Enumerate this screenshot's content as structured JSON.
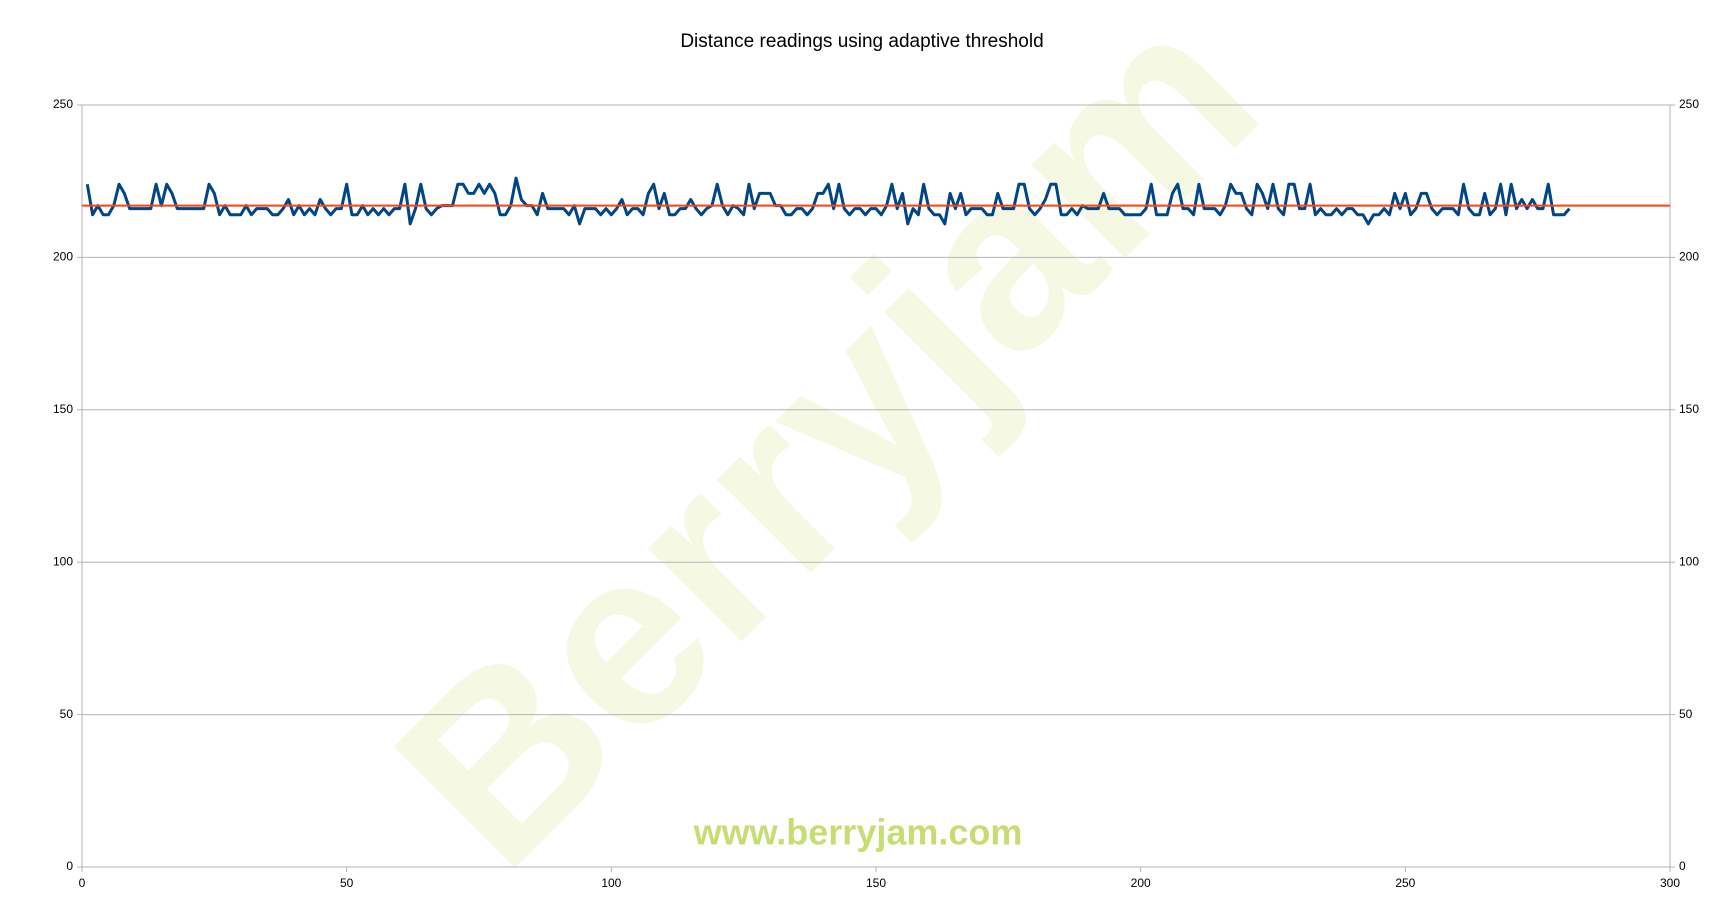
{
  "chart_data": {
    "type": "line",
    "title": "Distance readings using adaptive threshold",
    "watermark": "Berryjam",
    "footer_text": "www.berryjam.com",
    "xlim": [
      0,
      300
    ],
    "xticks": [
      0,
      50,
      100,
      150,
      200,
      250,
      300
    ],
    "ylim": [
      0,
      250
    ],
    "yticks": [
      0,
      50,
      100,
      150,
      200,
      250
    ],
    "y2lim": [
      0,
      250
    ],
    "y2ticks": [
      0,
      50,
      100,
      150,
      200,
      250
    ],
    "grid": true,
    "series": [
      {
        "color": "#004586",
        "x": [
          1,
          2,
          3,
          4,
          5,
          6,
          7,
          8,
          9,
          10,
          11,
          12,
          13,
          14,
          15,
          16,
          17,
          18,
          19,
          20,
          21,
          22,
          23,
          24,
          25,
          26,
          27,
          28,
          29,
          30,
          31,
          32,
          33,
          34,
          35,
          36,
          37,
          38,
          39,
          40,
          41,
          42,
          43,
          44,
          45,
          46,
          47,
          48,
          49,
          50,
          51,
          52,
          53,
          54,
          55,
          56,
          57,
          58,
          59,
          60,
          61,
          62,
          63,
          64,
          65,
          66,
          67,
          68,
          69,
          70,
          71,
          72,
          73,
          74,
          75,
          76,
          77,
          78,
          79,
          80,
          81,
          82,
          83,
          84,
          85,
          86,
          87,
          88,
          89,
          90,
          91,
          92,
          93,
          94,
          95,
          96,
          97,
          98,
          99,
          100,
          101,
          102,
          103,
          104,
          105,
          106,
          107,
          108,
          109,
          110,
          111,
          112,
          113,
          114,
          115,
          116,
          117,
          118,
          119,
          120,
          121,
          122,
          123,
          124,
          125,
          126,
          127,
          128,
          129,
          130,
          131,
          132,
          133,
          134,
          135,
          136,
          137,
          138,
          139,
          140,
          141,
          142,
          143,
          144,
          145,
          146,
          147,
          148,
          149,
          150,
          151,
          152,
          153,
          154,
          155,
          156,
          157,
          158,
          159,
          160,
          161,
          162,
          163,
          164,
          165,
          166,
          167,
          168,
          169,
          170,
          171,
          172,
          173,
          174,
          175,
          176,
          177,
          178,
          179,
          180,
          181,
          182,
          183,
          184,
          185,
          186,
          187,
          188,
          189,
          190,
          191,
          192,
          193,
          194,
          195,
          196,
          197,
          198,
          199,
          200,
          201,
          202,
          203,
          204,
          205,
          206,
          207,
          208,
          209,
          210,
          211,
          212,
          213,
          214,
          215,
          216,
          217,
          218,
          219,
          220,
          221,
          222,
          223,
          224,
          225,
          226,
          227,
          228,
          229,
          230,
          231,
          232,
          233,
          234,
          235,
          236,
          237,
          238,
          239,
          240,
          241,
          242,
          243,
          244,
          245,
          246,
          247,
          248,
          249,
          250,
          251,
          252,
          253,
          254,
          255,
          256,
          257,
          258,
          259,
          260,
          261,
          262,
          263,
          264,
          265,
          266,
          267,
          268,
          269,
          270,
          271,
          272,
          273,
          274,
          275,
          276,
          277,
          278,
          279,
          280,
          281
        ],
        "values": [
          224,
          214,
          217,
          214,
          214,
          217,
          224,
          221,
          216,
          216,
          216,
          216,
          216,
          224,
          217,
          224,
          221,
          216,
          216,
          216,
          216,
          216,
          216,
          224,
          221,
          214,
          217,
          214,
          214,
          214,
          217,
          214,
          216,
          216,
          216,
          214,
          214,
          216,
          219,
          214,
          217,
          214,
          216,
          214,
          219,
          216,
          214,
          216,
          216,
          224,
          214,
          214,
          217,
          214,
          216,
          214,
          216,
          214,
          216,
          216,
          224,
          211,
          216,
          224,
          216,
          214,
          216,
          217,
          217,
          217,
          224,
          224,
          221,
          221,
          224,
          221,
          224,
          221,
          214,
          214,
          217,
          226,
          219,
          217,
          217,
          214,
          221,
          216,
          216,
          216,
          216,
          214,
          217,
          211,
          216,
          216,
          216,
          214,
          216,
          214,
          216,
          219,
          214,
          216,
          216,
          214,
          221,
          224,
          216,
          221,
          214,
          214,
          216,
          216,
          219,
          216,
          214,
          216,
          217,
          224,
          217,
          214,
          217,
          216,
          214,
          224,
          216,
          221,
          221,
          221,
          217,
          217,
          214,
          214,
          216,
          216,
          214,
          216,
          221,
          221,
          224,
          216,
          224,
          216,
          214,
          216,
          216,
          214,
          216,
          216,
          214,
          217,
          224,
          216,
          221,
          211,
          216,
          214,
          224,
          216,
          214,
          214,
          211,
          221,
          216,
          221,
          214,
          216,
          216,
          216,
          214,
          214,
          221,
          216,
          216,
          216,
          224,
          224,
          216,
          214,
          216,
          219,
          224,
          224,
          214,
          214,
          216,
          214,
          217,
          216,
          216,
          216,
          221,
          216,
          216,
          216,
          214,
          214,
          214,
          214,
          216,
          224,
          214,
          214,
          214,
          221,
          224,
          216,
          216,
          214,
          224,
          216,
          216,
          216,
          214,
          217,
          224,
          221,
          221,
          216,
          214,
          224,
          221,
          216,
          224,
          216,
          214,
          224,
          224,
          216,
          216,
          224,
          214,
          216,
          214,
          214,
          216,
          214,
          216,
          216,
          214,
          214,
          211,
          214,
          214,
          216,
          214,
          221,
          216,
          221,
          214,
          216,
          221,
          221,
          216,
          214,
          216,
          216,
          216,
          214,
          224,
          216,
          214,
          214,
          221,
          214,
          216,
          224,
          214,
          224,
          216,
          219,
          216,
          219,
          216,
          216,
          224,
          214,
          214,
          214,
          216
        ]
      },
      {
        "color": "#ff420e",
        "x": [
          0,
          300
        ],
        "values": [
          217,
          217
        ]
      }
    ]
  }
}
